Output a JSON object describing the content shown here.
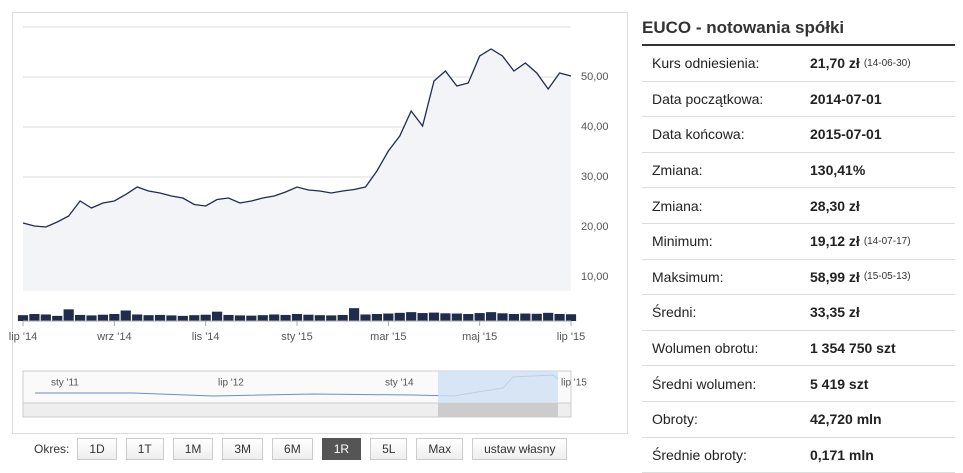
{
  "chart_data": {
    "type": "line",
    "x": [
      0,
      0.25,
      0.5,
      0.75,
      1,
      1.25,
      1.5,
      1.75,
      2,
      2.25,
      2.5,
      2.75,
      3,
      3.25,
      3.5,
      3.75,
      4,
      4.25,
      4.5,
      4.75,
      5,
      5.25,
      5.5,
      5.75,
      6,
      6.25,
      6.5,
      6.75,
      7,
      7.25,
      7.5,
      7.75,
      8,
      8.25,
      8.5,
      8.75,
      9,
      9.25,
      9.5,
      9.75,
      10,
      10.25,
      10.5,
      10.75,
      11,
      11.25,
      11.5,
      11.75,
      12
    ],
    "series": [
      {
        "color": "#1f2d4d",
        "values": [
          20.8,
          20.2,
          20,
          21,
          22.2,
          25.2,
          23.8,
          24.8,
          25.2,
          26.5,
          28,
          27.2,
          26.8,
          26.2,
          25.8,
          24.5,
          24.2,
          25.5,
          25.8,
          24.8,
          25.2,
          25.8,
          26.2,
          27,
          28,
          27.4,
          27.2,
          26.8,
          27.2,
          27.5,
          28,
          31.2,
          35.2,
          38.2,
          43.2,
          40.2,
          49.2,
          51.2,
          48.2,
          48.8,
          54.2,
          55.6,
          54.2,
          51.2,
          52.8,
          50.8,
          47.6,
          50.8,
          50.2
        ]
      }
    ],
    "volume": {
      "color": "#1f2d4d",
      "values": [
        25000,
        30000,
        28000,
        22000,
        50000,
        26000,
        24000,
        27000,
        30000,
        45000,
        28000,
        25000,
        26000,
        24000,
        22000,
        25000,
        27000,
        40000,
        26000,
        24000,
        23000,
        25000,
        28000,
        26000,
        30000,
        27000,
        25000,
        24000,
        26000,
        55000,
        28000,
        30000,
        32000,
        35000,
        38000,
        34000,
        36000,
        33000,
        32000,
        30000,
        34000,
        38000,
        33000,
        30000,
        32000,
        31000,
        35000,
        30000,
        29000
      ]
    },
    "xlim": [
      0,
      12
    ],
    "xticks": [
      {
        "value": 0,
        "label": "lip '14"
      },
      {
        "value": 2,
        "label": "wrz '14"
      },
      {
        "value": 4,
        "label": "lis '14"
      },
      {
        "value": 6,
        "label": "sty '15"
      },
      {
        "value": 8,
        "label": "mar '15"
      },
      {
        "value": 10,
        "label": "maj '15"
      },
      {
        "value": 12,
        "label": "lip '15"
      }
    ],
    "ylim": [
      7.2,
      60
    ],
    "yticks": [
      {
        "value": 10,
        "label": "10,00"
      },
      {
        "value": 20,
        "label": "20,00"
      },
      {
        "value": 30,
        "label": "30,00"
      },
      {
        "value": 40,
        "label": "40,00"
      },
      {
        "value": 50,
        "label": "50,00"
      }
    ],
    "grid": true
  },
  "navigator": {
    "labels": [
      "sty '11",
      "lip '12",
      "sty '14",
      "lip '15"
    ]
  },
  "period": {
    "label": "Okres:",
    "buttons": [
      "1D",
      "1T",
      "1M",
      "3M",
      "6M",
      "1R",
      "5L",
      "Max",
      "ustaw własny"
    ],
    "active": 5
  },
  "table": {
    "title": "EUCO - notowania spółki",
    "rows": [
      {
        "label": "Kurs odniesienia:",
        "value": "21,70 zł",
        "note": "(14-06-30)"
      },
      {
        "label": "Data początkowa:",
        "value": "2014-07-01"
      },
      {
        "label": "Data końcowa:",
        "value": "2015-07-01"
      },
      {
        "label": "Zmiana:",
        "value": "130,41%"
      },
      {
        "label": "Zmiana:",
        "value": "28,30 zł"
      },
      {
        "label": "Minimum:",
        "value": "19,12 zł",
        "note": "(14-07-17)"
      },
      {
        "label": "Maksimum:",
        "value": "58,99 zł",
        "note": "(15-05-13)"
      },
      {
        "label": "Średni:",
        "value": "33,35 zł"
      },
      {
        "label": "Wolumen obrotu:",
        "value": "1 354 750 szt"
      },
      {
        "label": "Średni wolumen:",
        "value": "5 419 szt"
      },
      {
        "label": "Obroty:",
        "value": "42,720 mln"
      },
      {
        "label": "Średnie obroty:",
        "value": "0,171 mln"
      }
    ]
  }
}
